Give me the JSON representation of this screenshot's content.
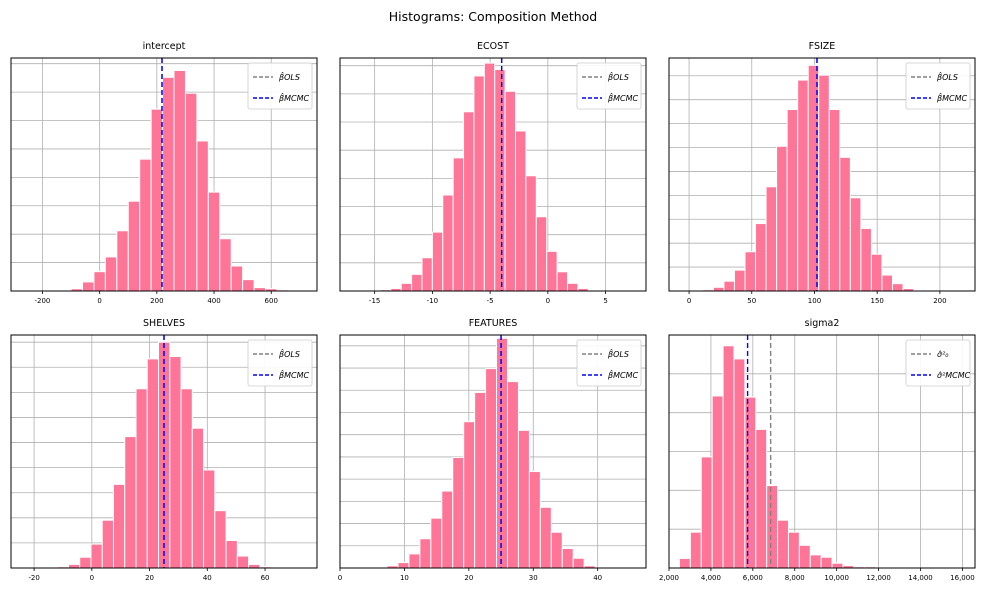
{
  "figure": {
    "title": "Histograms: Composition Method",
    "colors": {
      "bar": "#ff7597",
      "bar_edge": "#ffffff",
      "ols_line": "#808080",
      "mcmc_line": "#0000ff",
      "grid": "#b0b0b0"
    }
  },
  "chart_data": [
    {
      "type": "bar",
      "title": "intercept",
      "xlim": [
        -310,
        760
      ],
      "xticks": [
        -200,
        0,
        200,
        400,
        600
      ],
      "xtick_labels": [
        "-200",
        "0",
        "200",
        "400",
        "600"
      ],
      "bin_start": -100,
      "bin_width": 40,
      "values": [
        2,
        8,
        17,
        30,
        53,
        79,
        116,
        160,
        188,
        194,
        174,
        132,
        87,
        46,
        22,
        10,
        3,
        2,
        1
      ],
      "ylim": [
        0,
        205
      ],
      "ygrid": [
        0,
        25,
        50,
        75,
        100,
        125,
        150,
        175,
        200
      ],
      "ols": 218,
      "mcmc": 218,
      "legend": [
        "β̂OLS",
        "β̂MCMC"
      ],
      "legend_loc": "upper right"
    },
    {
      "type": "bar",
      "title": "ECOST",
      "xlim": [
        -18,
        8.5
      ],
      "xticks": [
        -15,
        -10,
        -5,
        0,
        5
      ],
      "xtick_labels": [
        "-15",
        "-10",
        "-5",
        "0",
        "5"
      ],
      "bin_start": -14.5,
      "bin_width": 0.9,
      "values": [
        1,
        2,
        6,
        13,
        26,
        46,
        75,
        104,
        140,
        168,
        178,
        173,
        156,
        125,
        90,
        58,
        31,
        15,
        6,
        2
      ],
      "ylim": [
        0,
        182
      ],
      "ygrid": [
        0,
        22,
        44,
        66,
        88,
        110,
        132,
        154,
        176
      ],
      "ols": -4.0,
      "mcmc": -4.0,
      "legend": [
        "β̂OLS",
        "β̂MCMC"
      ],
      "legend_loc": "upper right"
    },
    {
      "type": "bar",
      "title": "FSIZE",
      "xlim": [
        -16,
        228
      ],
      "xticks": [
        0,
        50,
        100,
        150,
        200
      ],
      "xtick_labels": [
        "0",
        "50",
        "100",
        "150",
        "200"
      ],
      "bin_start": 11,
      "bin_width": 8.4,
      "values": [
        1,
        3,
        8,
        17,
        32,
        55,
        85,
        118,
        148,
        172,
        184,
        176,
        148,
        109,
        76,
        51,
        30,
        13,
        6,
        2
      ],
      "ylim": [
        0,
        190
      ],
      "ygrid": [
        0,
        19.5,
        39,
        58.5,
        78,
        97.5,
        117,
        136.5,
        156,
        175.5
      ],
      "ols": 102,
      "mcmc": 102,
      "legend": [
        "β̂OLS",
        "β̂MCMC"
      ],
      "legend_loc": "upper right"
    },
    {
      "type": "bar",
      "title": "SHELVES",
      "xlim": [
        -28,
        78
      ],
      "xticks": [
        -20,
        0,
        20,
        40,
        60
      ],
      "xtick_labels": [
        "-20",
        "0",
        "20",
        "40",
        "60"
      ],
      "bin_start": -12,
      "bin_width": 3.9,
      "values": [
        1,
        3,
        9,
        20,
        40,
        70,
        110,
        150,
        175,
        189,
        177,
        150,
        117,
        82,
        48,
        23,
        10,
        3,
        1
      ],
      "ylim": [
        0,
        195
      ],
      "ygrid": [
        0,
        21,
        42,
        63,
        84,
        105,
        126,
        147,
        168,
        189
      ],
      "ols": 25,
      "mcmc": 25,
      "legend": [
        "β̂OLS",
        "β̂MCMC"
      ],
      "legend_loc": "upper right"
    },
    {
      "type": "bar",
      "title": "FEATURES",
      "xlim": [
        0,
        47.5
      ],
      "xticks": [
        0,
        10,
        20,
        30,
        40
      ],
      "xtick_labels": [
        "0",
        "10",
        "20",
        "30",
        "40"
      ],
      "bin_start": 7.3,
      "bin_width": 1.7,
      "values": [
        2,
        5,
        13,
        27,
        46,
        71,
        102,
        135,
        162,
        184,
        212,
        172,
        127,
        89,
        56,
        33,
        18,
        9,
        2
      ],
      "ylim": [
        0,
        215
      ],
      "ygrid": [
        0,
        20.5,
        41,
        61.5,
        82,
        102.5,
        123,
        143.5,
        164,
        184.5,
        205
      ],
      "ols": 25,
      "mcmc": 25,
      "legend": [
        "β̂OLS",
        "β̂MCMC"
      ],
      "legend_loc": "upper right"
    },
    {
      "type": "bar",
      "title": "sigma2",
      "xlim": [
        2000,
        16600
      ],
      "xticks": [
        2000,
        4000,
        6000,
        8000,
        10000,
        12000,
        14000,
        16000
      ],
      "xtick_labels": [
        "2,000",
        "4,000",
        "6,000",
        "8,000",
        "10,000",
        "12,000",
        "14,000",
        "16,000"
      ],
      "bin_start": 2500,
      "bin_width": 520,
      "values": [
        8,
        30,
        93,
        144,
        186,
        175,
        143,
        116,
        69,
        40,
        30,
        19,
        11,
        9,
        4,
        2,
        1,
        1
      ],
      "ylim": [
        0,
        195
      ],
      "ygrid": [
        0,
        32.5,
        65,
        97.5,
        130,
        162.5,
        195
      ],
      "ols": 6850,
      "mcmc": 5750,
      "legend": [
        "σ̂²₀",
        "σ̂²MCMC"
      ],
      "legend_loc": "upper right"
    }
  ]
}
